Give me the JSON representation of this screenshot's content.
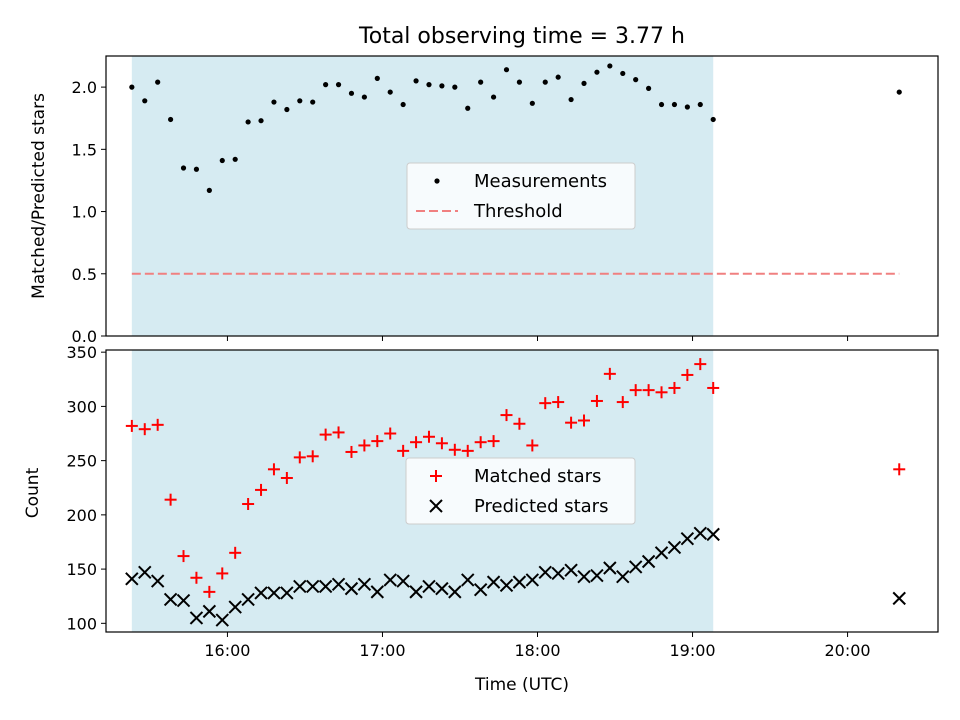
{
  "chart_data": [
    {
      "type": "scatter",
      "title": "Total observing time = 3.77 h",
      "xlabel": "",
      "ylabel": "Matched/Predicted stars",
      "ylim": [
        0,
        2.25
      ],
      "xlim": [
        "15:13",
        "20:35"
      ],
      "yticks": [
        "0.0",
        "0.5",
        "1.0",
        "1.5",
        "2.0"
      ],
      "xticks": [],
      "shaded_span": [
        "15:23",
        "19:08"
      ],
      "shade_color": "#add8e6",
      "legend_position": "center",
      "series": [
        {
          "name": "Measurements",
          "marker": "dot",
          "color": "#000000",
          "x": [
            "15:23",
            "15:28",
            "15:33",
            "15:38",
            "15:43",
            "15:48",
            "15:53",
            "15:58",
            "16:03",
            "16:08",
            "16:13",
            "16:18",
            "16:23",
            "16:28",
            "16:33",
            "16:38",
            "16:43",
            "16:48",
            "16:53",
            "16:58",
            "17:03",
            "17:08",
            "17:13",
            "17:18",
            "17:23",
            "17:28",
            "17:33",
            "17:38",
            "17:43",
            "17:48",
            "17:53",
            "17:58",
            "18:03",
            "18:08",
            "18:13",
            "18:18",
            "18:23",
            "18:28",
            "18:33",
            "18:38",
            "18:43",
            "18:48",
            "18:53",
            "18:58",
            "19:03",
            "19:08",
            "20:20"
          ],
          "y": [
            2.0,
            1.89,
            2.04,
            1.74,
            1.35,
            1.34,
            1.17,
            1.41,
            1.42,
            1.72,
            1.73,
            1.88,
            1.82,
            1.89,
            1.88,
            2.02,
            2.02,
            1.95,
            1.92,
            2.07,
            1.96,
            1.86,
            2.05,
            2.02,
            2.01,
            2.0,
            1.83,
            2.04,
            1.92,
            2.14,
            2.04,
            1.87,
            2.04,
            2.08,
            1.9,
            2.03,
            2.12,
            2.17,
            2.11,
            2.06,
            1.99,
            1.86,
            1.86,
            1.84,
            1.86,
            1.74,
            1.96
          ]
        },
        {
          "name": "Threshold",
          "type": "line",
          "style": "dashed",
          "color": "#f08080",
          "x": [
            "15:23",
            "20:20"
          ],
          "y": [
            0.5,
            0.5
          ]
        }
      ]
    },
    {
      "type": "scatter",
      "title": "",
      "xlabel": "Time (UTC)",
      "ylabel": "Count",
      "ylim": [
        92,
        352
      ],
      "xlim": [
        "15:13",
        "20:35"
      ],
      "yticks": [
        "100",
        "150",
        "200",
        "250",
        "300",
        "350"
      ],
      "xticks": [
        "16:00",
        "17:00",
        "18:00",
        "19:00",
        "20:00"
      ],
      "shaded_span": [
        "15:23",
        "19:08"
      ],
      "shade_color": "#add8e6",
      "legend_position": "center",
      "series": [
        {
          "name": "Matched stars",
          "marker": "plus",
          "color": "#ff0000",
          "x": [
            "15:23",
            "15:28",
            "15:33",
            "15:38",
            "15:43",
            "15:48",
            "15:53",
            "15:58",
            "16:03",
            "16:08",
            "16:13",
            "16:18",
            "16:23",
            "16:28",
            "16:33",
            "16:38",
            "16:43",
            "16:48",
            "16:53",
            "16:58",
            "17:03",
            "17:08",
            "17:13",
            "17:18",
            "17:23",
            "17:28",
            "17:33",
            "17:38",
            "17:43",
            "17:48",
            "17:53",
            "17:58",
            "18:03",
            "18:08",
            "18:13",
            "18:18",
            "18:23",
            "18:28",
            "18:33",
            "18:38",
            "18:43",
            "18:48",
            "18:53",
            "18:58",
            "19:03",
            "19:08",
            "20:20"
          ],
          "y": [
            282,
            279,
            283,
            214,
            162,
            142,
            129,
            146,
            165,
            210,
            223,
            242,
            234,
            253,
            254,
            274,
            276,
            258,
            264,
            268,
            275,
            259,
            267,
            272,
            266,
            260,
            259,
            267,
            268,
            292,
            284,
            264,
            303,
            304,
            285,
            287,
            305,
            330,
            304,
            315,
            315,
            313,
            317,
            329,
            339,
            317,
            242
          ]
        },
        {
          "name": "Predicted stars",
          "marker": "x",
          "color": "#000000",
          "x": [
            "15:23",
            "15:28",
            "15:33",
            "15:38",
            "15:43",
            "15:48",
            "15:53",
            "15:58",
            "16:03",
            "16:08",
            "16:13",
            "16:18",
            "16:23",
            "16:28",
            "16:33",
            "16:38",
            "16:43",
            "16:48",
            "16:53",
            "16:58",
            "17:03",
            "17:08",
            "17:13",
            "17:18",
            "17:23",
            "17:28",
            "17:33",
            "17:38",
            "17:43",
            "17:48",
            "17:53",
            "17:58",
            "18:03",
            "18:08",
            "18:13",
            "18:18",
            "18:23",
            "18:28",
            "18:33",
            "18:38",
            "18:43",
            "18:48",
            "18:53",
            "18:58",
            "19:03",
            "19:08",
            "20:20"
          ],
          "y": [
            141,
            147,
            139,
            122,
            121,
            105,
            111,
            103,
            115,
            122,
            128,
            128,
            128,
            134,
            134,
            134,
            136,
            132,
            136,
            129,
            140,
            139,
            129,
            134,
            132,
            129,
            140,
            131,
            138,
            135,
            138,
            140,
            147,
            146,
            149,
            143,
            144,
            151,
            143,
            152,
            157,
            165,
            170,
            178,
            183,
            182,
            123
          ]
        }
      ]
    }
  ]
}
